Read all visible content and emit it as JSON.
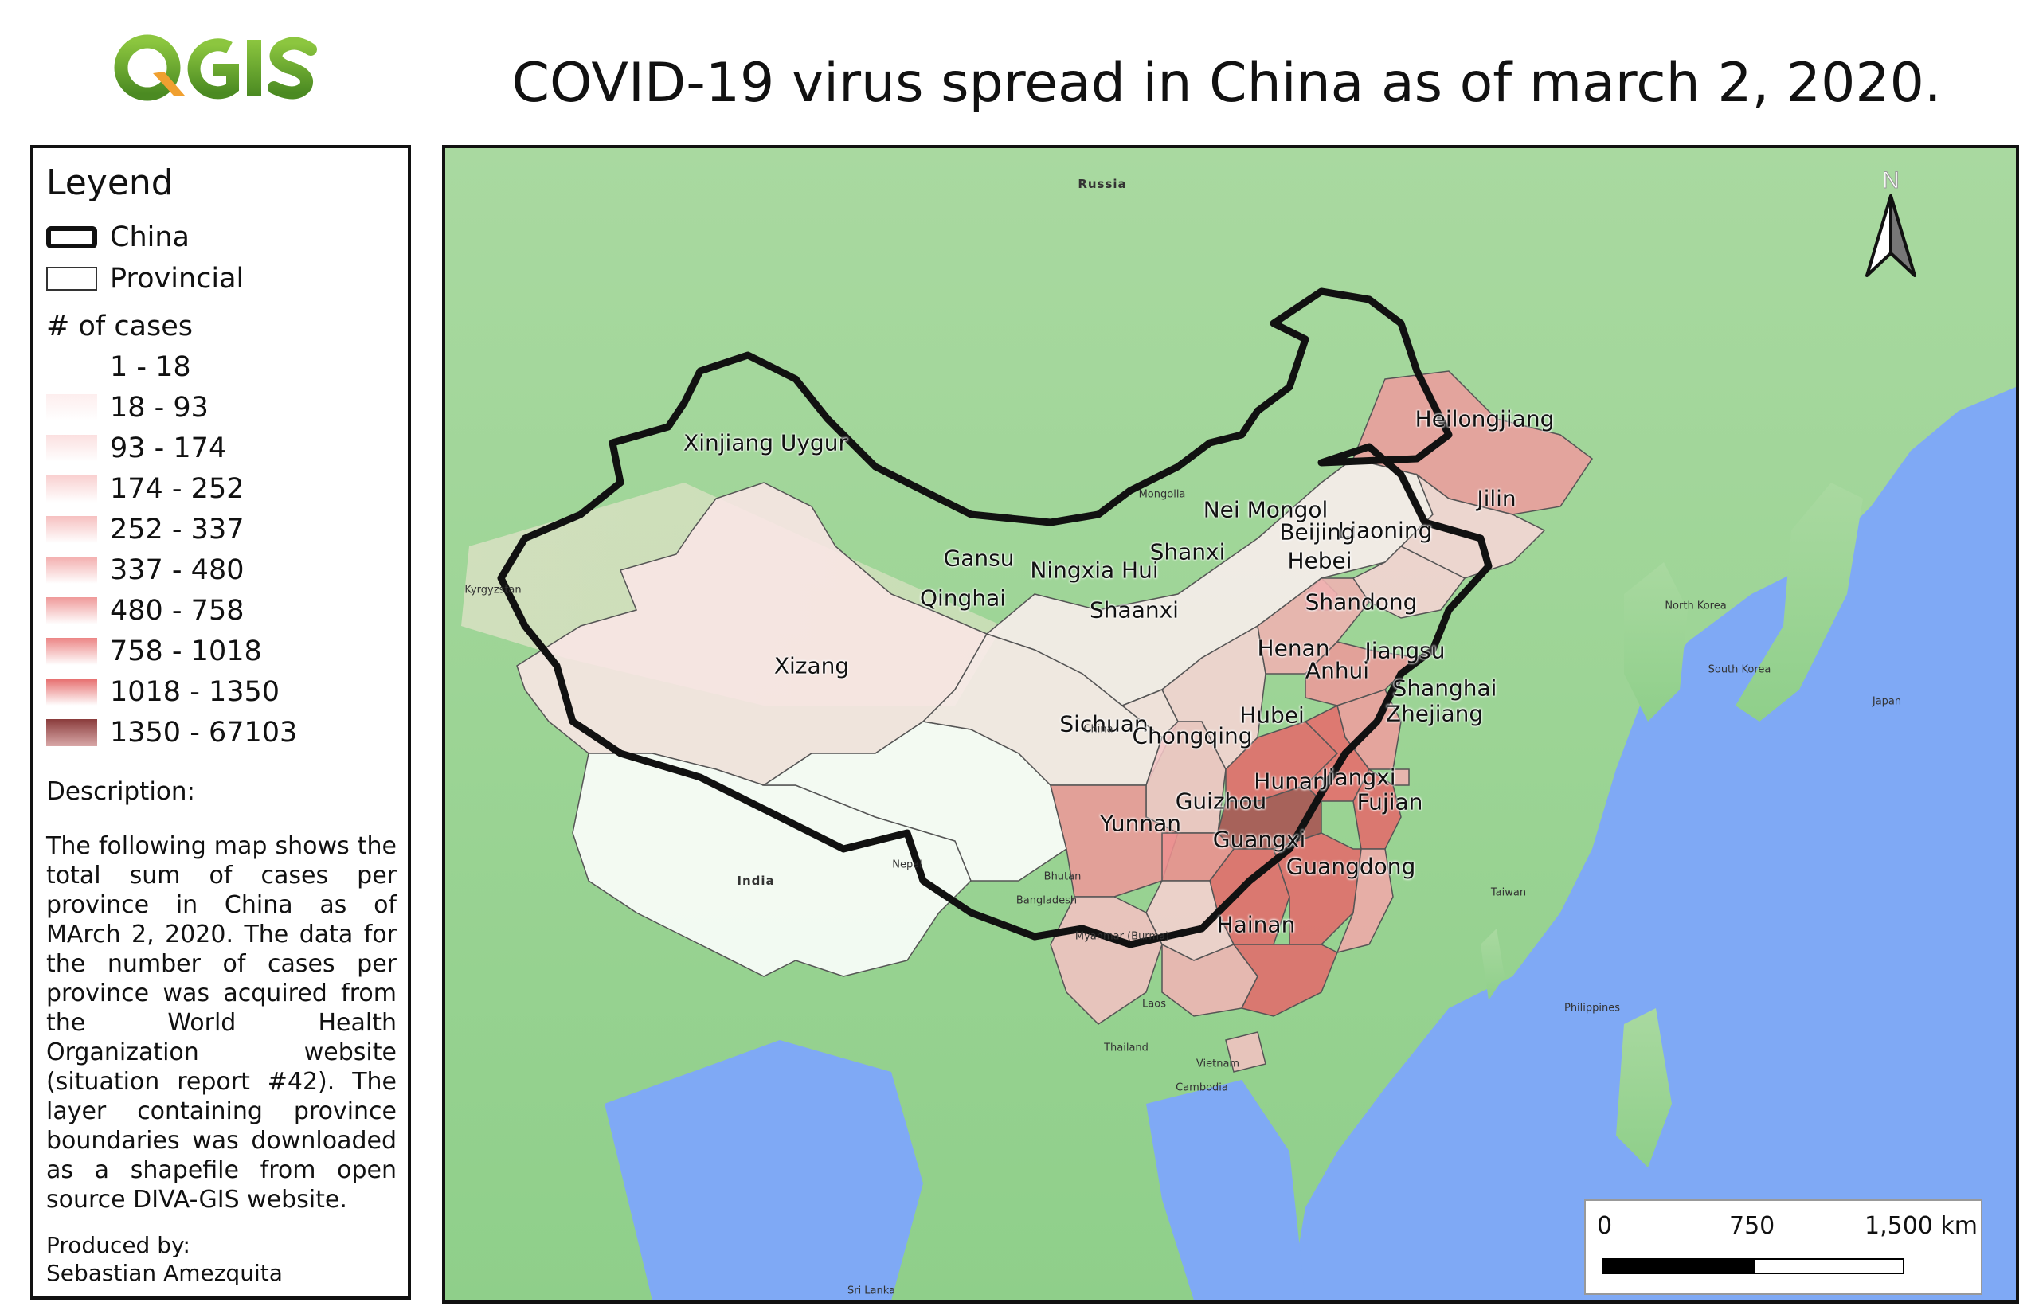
{
  "header": {
    "logo_text": "QGIS",
    "title": "COVID-19 virus spread in China as of march 2, 2020."
  },
  "legend": {
    "title": "Leyend",
    "china_label": "China",
    "provincial_label": "Provincial",
    "cases_title": "# of cases",
    "classes": [
      {
        "label": "1 - 18",
        "color": "#ffffff"
      },
      {
        "label": "18 - 93",
        "color": "#fdeeee"
      },
      {
        "label": "93 - 174",
        "color": "#fbe0e0"
      },
      {
        "label": "174 - 252",
        "color": "#f9d0d0"
      },
      {
        "label": "252 - 337",
        "color": "#f6c0c0"
      },
      {
        "label": "337 - 480",
        "color": "#f3aeae"
      },
      {
        "label": "480 - 758",
        "color": "#ef9a9a"
      },
      {
        "label": "758 - 1018",
        "color": "#ec8585"
      },
      {
        "label": "1018 - 1350",
        "color": "#e66c6c"
      },
      {
        "label": "1350 - 67103",
        "color": "#a85252"
      }
    ],
    "description_title": "Description:",
    "description": "The following map shows the total sum of cases per province in China as of MArch 2, 2020. The data for the number of cases per province was acquired from the World Health Organization website (situation report #42). The layer containing province boundaries was downloaded as a shapefile from open source DIVA-GIS website.",
    "produced_by_label": "Produced by:",
    "author": "Sebastian Amezquita"
  },
  "map": {
    "north_label": "N",
    "scale": {
      "zero": "0",
      "mid": "750",
      "end": "1,500 km"
    },
    "provinces": [
      {
        "name": "Xinjiang Uygur",
        "color": "#fbe6e6"
      },
      {
        "name": "Xizang",
        "color": "#ffffff"
      },
      {
        "name": "Qinghai",
        "color": "#ffffff"
      },
      {
        "name": "Gansu",
        "color": "#fbeaea"
      },
      {
        "name": "Nei Mongol",
        "color": "#fbeeee"
      },
      {
        "name": "Ningxia Hui",
        "color": "#f9e2e2"
      },
      {
        "name": "Shaanxi",
        "color": "#f3c6c6"
      },
      {
        "name": "Shanxi",
        "color": "#f6d4d4"
      },
      {
        "name": "Heilongjiang",
        "color": "#ec9d9d"
      },
      {
        "name": "Jilin",
        "color": "#f6d6d6"
      },
      {
        "name": "Liaoning",
        "color": "#f6d4d4"
      },
      {
        "name": "Beijing",
        "color": "#f0b0b0"
      },
      {
        "name": "Hebei",
        "color": "#f0b2b2"
      },
      {
        "name": "Shandong",
        "color": "#ec9a9a"
      },
      {
        "name": "Henan",
        "color": "#e36b6b"
      },
      {
        "name": "Jiangsu",
        "color": "#ee9e9e"
      },
      {
        "name": "Anhui",
        "color": "#e66c6c"
      },
      {
        "name": "Shanghai",
        "color": "#f0b0b0"
      },
      {
        "name": "Hubei",
        "color": "#a85252"
      },
      {
        "name": "Sichuan",
        "color": "#ec9898"
      },
      {
        "name": "Chongqing",
        "color": "#ec9090"
      },
      {
        "name": "Zhejiang",
        "color": "#e36b6b"
      },
      {
        "name": "Hunan",
        "color": "#e36b6b"
      },
      {
        "name": "Jiangxi",
        "color": "#e36b6b"
      },
      {
        "name": "Fujian",
        "color": "#f0a8a8"
      },
      {
        "name": "Guizhou",
        "color": "#f6d0d0"
      },
      {
        "name": "Yunnan",
        "color": "#f3c2c2"
      },
      {
        "name": "Guangxi",
        "color": "#f0b4b4"
      },
      {
        "name": "Guangdong",
        "color": "#e36b6b"
      },
      {
        "name": "Hainan",
        "color": "#f3c2c2"
      }
    ],
    "basemap_labels": [
      {
        "name": "Russia"
      },
      {
        "name": "Mongolia"
      },
      {
        "name": "Kyrgyzstan"
      },
      {
        "name": "North Korea"
      },
      {
        "name": "South Korea"
      },
      {
        "name": "Japan"
      },
      {
        "name": "Nepal"
      },
      {
        "name": "Bhutan"
      },
      {
        "name": "India"
      },
      {
        "name": "Bangladesh"
      },
      {
        "name": "Myanmar (Burma)"
      },
      {
        "name": "Laos"
      },
      {
        "name": "Thailand"
      },
      {
        "name": "Vietnam"
      },
      {
        "name": "Cambodia"
      },
      {
        "name": "Taiwan"
      },
      {
        "name": "Philippines"
      },
      {
        "name": "Sri Lanka"
      },
      {
        "name": "China"
      }
    ]
  }
}
